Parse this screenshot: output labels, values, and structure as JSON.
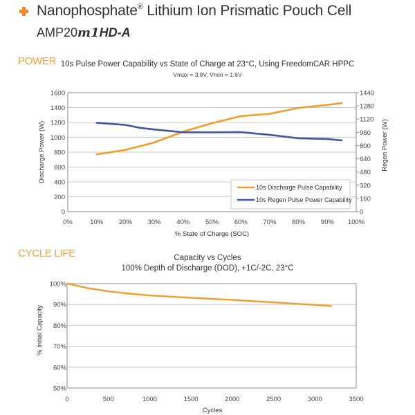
{
  "header": {
    "icon": "plus-icon",
    "title_main": "Nanophosphate",
    "title_reg": "®",
    "title_rest": " Lithium Ion Prismatic Pouch Cell",
    "model_prefix": "AMP20",
    "model_mark": "m1",
    "model_suffix": "HD-A"
  },
  "sections": {
    "power": "POWER",
    "cycle_life": "CYCLE LIFE"
  },
  "colors": {
    "accent": "#f08a2c",
    "section": "#f0a040",
    "discharge": "#f39c2b",
    "regen": "#3f56a6",
    "grid": "#c8c8c8",
    "axis": "#8a8a8a"
  },
  "chart_data": [
    {
      "type": "line",
      "title": "10s Pulse Power Capability vs State of Charge at 23°C, Using FreedomCAR HPPC",
      "subtitle": "Vmax = 3.8V, Vmin = 1.6V",
      "xlabel": "% State of Charge (SOC)",
      "ylabel": "Discharge Power (W)",
      "y2label": "Regen Power (W)",
      "xlim": [
        0,
        100
      ],
      "ylim": [
        0,
        1600
      ],
      "y2lim": [
        0,
        1440
      ],
      "x_ticks": [
        "0%",
        "10%",
        "20%",
        "30%",
        "40%",
        "50%",
        "60%",
        "70%",
        "80%",
        "90%",
        "100%"
      ],
      "y_ticks": [
        "0",
        "200",
        "400",
        "600",
        "800",
        "1000",
        "1200",
        "1400",
        "1600"
      ],
      "y2_ticks": [
        "0",
        "160",
        "320",
        "480",
        "640",
        "800",
        "960",
        "1120",
        "1280",
        "1440"
      ],
      "grid": true,
      "legend_position": "bottom-right",
      "series": [
        {
          "name": "10s Discharge Pulse Capability",
          "axis": "left",
          "x": [
            10,
            20,
            30,
            40,
            50,
            60,
            70,
            80,
            90,
            95
          ],
          "values": [
            770,
            830,
            930,
            1075,
            1190,
            1285,
            1315,
            1395,
            1435,
            1460
          ]
        },
        {
          "name": "10s Regen Pulse Power Capability",
          "axis": "right",
          "x": [
            10,
            20,
            25,
            30,
            40,
            50,
            60,
            70,
            80,
            90,
            95
          ],
          "values": [
            1075,
            1050,
            1015,
            995,
            960,
            960,
            962,
            930,
            888,
            880,
            862
          ]
        }
      ]
    },
    {
      "type": "line",
      "title": "Capacity vs Cycles",
      "subtitle": "100% Depth of Discharge (DOD), +1C/-2C, 23°C",
      "xlabel": "Cycles",
      "ylabel": "% Initial Capacity",
      "xlim": [
        0,
        3500
      ],
      "ylim": [
        50,
        100
      ],
      "x_ticks": [
        "0",
        "500",
        "1000",
        "1500",
        "2000",
        "2500",
        "3000",
        "3500"
      ],
      "y_ticks": [
        "50%",
        "60%",
        "70%",
        "80%",
        "90%",
        "100%"
      ],
      "grid": true,
      "series": [
        {
          "name": "Capacity",
          "x": [
            0,
            250,
            500,
            750,
            1000,
            1500,
            2000,
            2500,
            3000,
            3200
          ],
          "values": [
            100,
            97.8,
            96.3,
            95.2,
            94.3,
            93.2,
            92.2,
            91.0,
            89.8,
            89.3
          ]
        }
      ]
    }
  ]
}
